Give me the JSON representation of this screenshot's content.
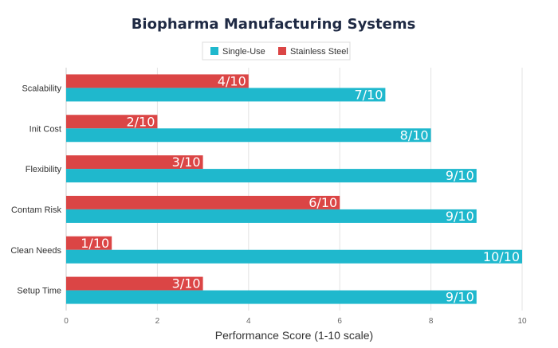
{
  "chart_data": {
    "type": "bar",
    "orientation": "horizontal",
    "title": "Biopharma Manufacturing Systems",
    "xlabel": "Performance Score (1-10 scale)",
    "ylabel": "",
    "xlim": [
      0,
      10
    ],
    "x_ticks": [
      0,
      2,
      4,
      6,
      8,
      10
    ],
    "grid": true,
    "legend_position": "top-center",
    "categories": [
      "Scalability",
      "Init Cost",
      "Flexibility",
      "Contam Risk",
      "Clean Needs",
      "Setup Time"
    ],
    "series": [
      {
        "name": "Single-Use",
        "color": "#1fb8cd",
        "values": [
          7,
          8,
          9,
          9,
          10,
          9
        ],
        "labels": [
          "7/10",
          "8/10",
          "9/10",
          "9/10",
          "10/10",
          "9/10"
        ]
      },
      {
        "name": "Stainless Steel",
        "color": "#db4545",
        "values": [
          4,
          2,
          3,
          6,
          1,
          3
        ],
        "labels": [
          "4/10",
          "2/10",
          "3/10",
          "6/10",
          "1/10",
          "3/10"
        ]
      }
    ]
  }
}
